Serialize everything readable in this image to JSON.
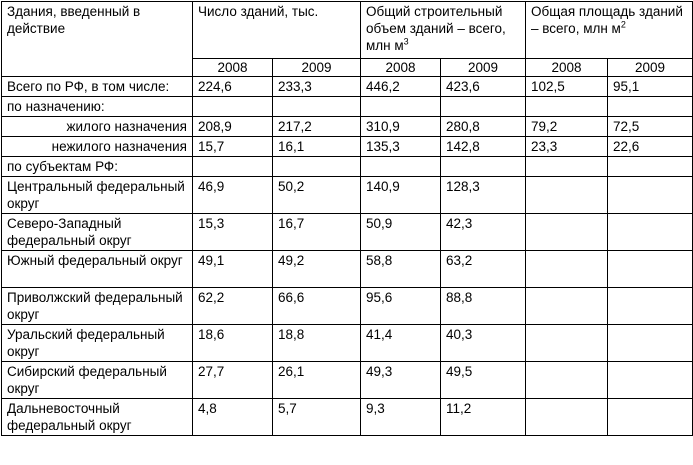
{
  "header": {
    "col_name": "Здания, введенный в действие",
    "col_count": "Число зданий, тыс.",
    "col_volume": "Общий строительный объем зданий – всего, млн м",
    "col_volume_sup": "3",
    "col_area": "Общая площадь зданий – всего, млн м",
    "col_area_sup": "2",
    "years": [
      "2008",
      "2009",
      "2008",
      "2009",
      "2008",
      "2009"
    ]
  },
  "rows": [
    {
      "label": "Всего по РФ, в том числе:",
      "values": [
        "224,6",
        "233,3",
        "446,2",
        "423,6",
        "102,5",
        "95,1"
      ]
    },
    {
      "label": "по назначению:",
      "values": [
        "",
        "",
        "",
        "",
        "",
        ""
      ]
    },
    {
      "label": "жилого назначения",
      "values": [
        "208,9",
        "217,2",
        "310,9",
        "280,8",
        "79,2",
        "72,5"
      ]
    },
    {
      "label": "нежилого назначения",
      "values": [
        "15,7",
        "16,1",
        "135,3",
        "142,8",
        "23,3",
        "22,6"
      ]
    },
    {
      "label": "по субъектам РФ:",
      "values": [
        "",
        "",
        "",
        "",
        "",
        ""
      ]
    },
    {
      "label": "Центральный федеральный округ",
      "values": [
        "46,9",
        "50,2",
        "140,9",
        "128,3",
        "",
        ""
      ]
    },
    {
      "label": "Северо-Западный федеральный округ",
      "values": [
        "15,3",
        "16,7",
        "50,9",
        "42,3",
        "",
        ""
      ]
    },
    {
      "label": "Южный федеральный округ",
      "values": [
        "49,1",
        "49,2",
        "58,8",
        "63,2",
        "",
        ""
      ]
    },
    {
      "label": "Приволжский федеральный округ",
      "values": [
        "62,2",
        "66,6",
        "95,6",
        "88,8",
        "",
        ""
      ]
    },
    {
      "label": "Уральский федеральный округ",
      "values": [
        "18,6",
        "18,8",
        "41,4",
        "40,3",
        "",
        ""
      ]
    },
    {
      "label": "Сибирский федеральный округ",
      "values": [
        "27,7",
        "26,1",
        "49,3",
        "49,5",
        "",
        ""
      ]
    },
    {
      "label": "Дальневосточный федеральный округ",
      "values": [
        "4,8",
        "5,7",
        "9,3",
        "11,2",
        "",
        ""
      ]
    }
  ]
}
